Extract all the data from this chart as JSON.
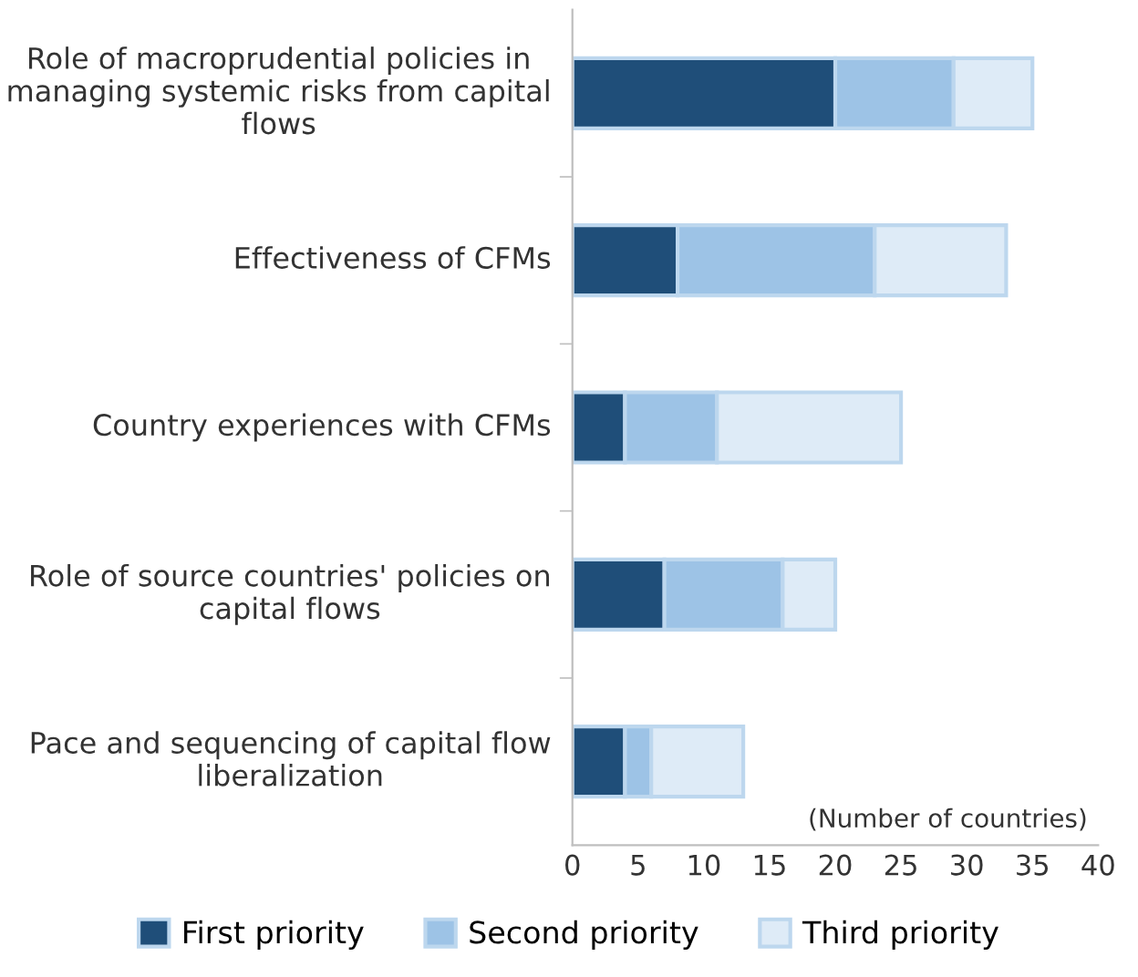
{
  "chart_data": {
    "type": "bar",
    "orientation": "horizontal",
    "stacked": true,
    "categories": [
      "Role of macroprudential policies in managing systemic risks from capital flows",
      "Effectiveness of CFMs",
      "Country experiences with CFMs",
      "Role of source countries' policies on capital flows",
      "Pace and sequencing of capital flow liberalization"
    ],
    "series": [
      {
        "name": "First priority",
        "color": "#1f4e79",
        "values": [
          20,
          8,
          4,
          7,
          4
        ]
      },
      {
        "name": "Second priority",
        "color": "#9dc3e6",
        "values": [
          9,
          15,
          7,
          9,
          2
        ]
      },
      {
        "name": "Third priority",
        "color": "#deebf7",
        "values": [
          6,
          10,
          14,
          4,
          7
        ]
      }
    ],
    "xlim": [
      0,
      40
    ],
    "xticks": [
      0,
      5,
      10,
      15,
      20,
      25,
      30,
      35,
      40
    ],
    "annotations": [
      "(Number of countries)"
    ],
    "legend": "bottom",
    "grid": false
  }
}
